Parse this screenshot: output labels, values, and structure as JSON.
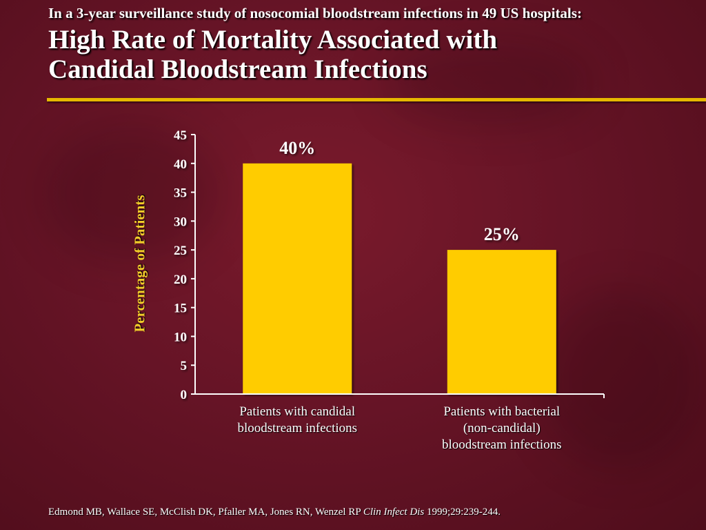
{
  "header": {
    "subtitle": "In a 3-year surveillance study of nosocomial bloodstream infections in 49 US hospitals:",
    "title_line1": "High Rate of Mortality Associated with",
    "title_line2": "Candidal Bloodstream Infections"
  },
  "colors": {
    "background": "#661426",
    "bar": "#ffcc00",
    "accent_rule": "#e6b800",
    "axis_label": "#f2cc2a"
  },
  "chart_data": {
    "type": "bar",
    "categories": [
      [
        "Patients with candidal",
        "bloodstream infections"
      ],
      [
        "Patients with bacterial",
        "(non-candidal)",
        "bloodstream infections"
      ]
    ],
    "values": [
      40,
      25
    ],
    "data_labels": [
      "40%",
      "25%"
    ],
    "ylabel": "Percentage of Patients",
    "xlabel": "",
    "ylim": [
      0,
      45
    ],
    "yticks": [
      0,
      5,
      10,
      15,
      20,
      25,
      30,
      35,
      40,
      45
    ],
    "grid": false,
    "legend": "none"
  },
  "footer": {
    "authors": "Edmond MB, Wallace SE, McClish DK, Pfaller MA, Jones RN, Wenzel RP ",
    "journal": "Clin Infect Dis",
    "citation": " 1999;29:239-244."
  }
}
